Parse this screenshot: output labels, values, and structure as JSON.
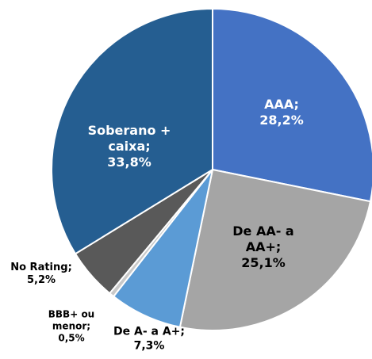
{
  "chart_data": {
    "type": "pie",
    "categories": [
      "AAA;",
      "De AA- a AA+;",
      "De A- a A+;",
      "BBB+ ou menor;",
      "No Rating;",
      "Soberano + caixa;"
    ],
    "values": [
      28.2,
      25.1,
      7.3,
      0.5,
      5.2,
      33.8
    ],
    "value_labels": [
      "28,2%",
      "25,1%",
      "7,3%",
      "0,5%",
      "5,2%",
      "33,8%"
    ],
    "colors": [
      "#4472c4",
      "#a5a5a5",
      "#5b9bd5",
      "#c9c9c9",
      "#595959",
      "#255e91"
    ]
  }
}
